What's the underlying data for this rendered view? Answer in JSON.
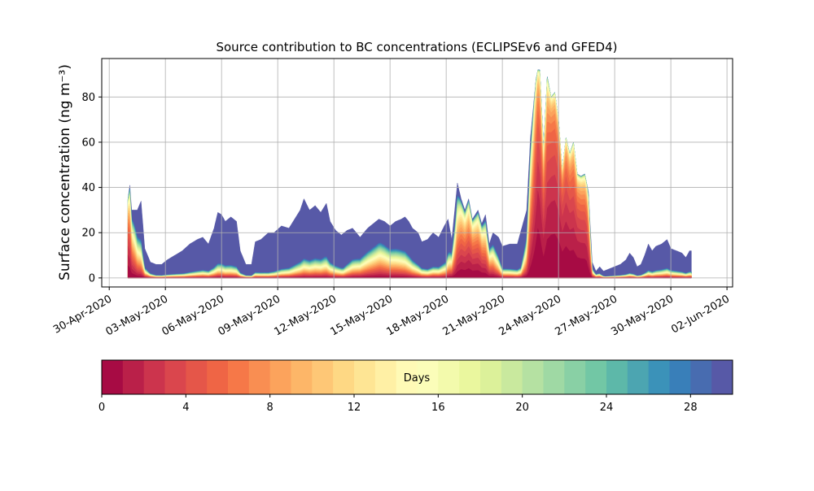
{
  "chart_data": {
    "type": "area",
    "stacked": true,
    "title": "Source contribution to BC concentrations (ECLIPSEv6 and GFED4)",
    "ylabel": "Surface concentration (ng m⁻³)",
    "xlabel": "",
    "x_start": "2020-05-01",
    "x_end": "2020-05-31",
    "xlim": [
      "2020-04-30",
      "2020-06-03"
    ],
    "ylim": [
      -4,
      97
    ],
    "xticks": [
      "30-Apr-2020",
      "03-May-2020",
      "06-May-2020",
      "09-May-2020",
      "12-May-2020",
      "15-May-2020",
      "18-May-2020",
      "21-May-2020",
      "24-May-2020",
      "27-May-2020",
      "30-May-2020",
      "02-Jun-2020"
    ],
    "yticks": [
      "0",
      "20",
      "40",
      "60",
      "80"
    ],
    "grid": true,
    "total_series": [
      [
        1.0,
        35
      ],
      [
        1.1,
        41
      ],
      [
        1.2,
        30
      ],
      [
        1.5,
        30
      ],
      [
        1.7,
        34
      ],
      [
        1.9,
        13
      ],
      [
        2.2,
        7
      ],
      [
        2.5,
        6
      ],
      [
        2.8,
        6
      ],
      [
        3.1,
        8
      ],
      [
        3.5,
        10
      ],
      [
        3.9,
        12
      ],
      [
        4.3,
        15
      ],
      [
        4.7,
        17
      ],
      [
        5.0,
        18
      ],
      [
        5.3,
        15
      ],
      [
        5.6,
        22
      ],
      [
        5.8,
        29
      ],
      [
        6.0,
        28
      ],
      [
        6.2,
        25
      ],
      [
        6.5,
        27
      ],
      [
        6.8,
        25
      ],
      [
        7.0,
        12
      ],
      [
        7.3,
        6
      ],
      [
        7.6,
        6
      ],
      [
        7.8,
        16
      ],
      [
        8.1,
        17
      ],
      [
        8.5,
        20
      ],
      [
        8.8,
        20
      ],
      [
        9.2,
        23
      ],
      [
        9.6,
        22
      ],
      [
        9.9,
        26
      ],
      [
        10.2,
        30
      ],
      [
        10.4,
        35
      ],
      [
        10.7,
        30
      ],
      [
        11.0,
        32
      ],
      [
        11.3,
        29
      ],
      [
        11.6,
        33
      ],
      [
        11.8,
        25
      ],
      [
        12.1,
        21
      ],
      [
        12.4,
        19
      ],
      [
        12.7,
        21
      ],
      [
        13.0,
        22
      ],
      [
        13.4,
        18
      ],
      [
        13.8,
        22
      ],
      [
        14.1,
        24
      ],
      [
        14.4,
        26
      ],
      [
        14.7,
        25
      ],
      [
        15.0,
        23
      ],
      [
        15.3,
        25
      ],
      [
        15.6,
        26
      ],
      [
        15.8,
        27
      ],
      [
        16.0,
        25
      ],
      [
        16.2,
        22
      ],
      [
        16.5,
        20
      ],
      [
        16.7,
        16
      ],
      [
        17.0,
        17
      ],
      [
        17.3,
        20
      ],
      [
        17.6,
        18
      ],
      [
        17.9,
        23
      ],
      [
        18.1,
        26
      ],
      [
        18.3,
        17
      ],
      [
        18.6,
        42
      ],
      [
        18.8,
        35
      ],
      [
        19.0,
        30
      ],
      [
        19.2,
        35
      ],
      [
        19.4,
        26
      ],
      [
        19.7,
        30
      ],
      [
        19.9,
        24
      ],
      [
        20.1,
        28
      ],
      [
        20.3,
        15
      ],
      [
        20.5,
        20
      ],
      [
        20.8,
        18
      ],
      [
        21.0,
        14
      ],
      [
        21.4,
        15
      ],
      [
        21.8,
        15
      ],
      [
        22.1,
        24
      ],
      [
        22.3,
        30
      ],
      [
        22.5,
        62
      ],
      [
        22.8,
        88
      ],
      [
        22.9,
        92
      ],
      [
        23.0,
        92
      ],
      [
        23.2,
        58
      ],
      [
        23.4,
        89
      ],
      [
        23.6,
        80
      ],
      [
        23.8,
        82
      ],
      [
        24.0,
        70
      ],
      [
        24.2,
        48
      ],
      [
        24.4,
        62
      ],
      [
        24.6,
        55
      ],
      [
        24.8,
        60
      ],
      [
        25.0,
        46
      ],
      [
        25.2,
        45
      ],
      [
        25.4,
        46
      ],
      [
        25.6,
        38
      ],
      [
        25.8,
        7
      ],
      [
        26.0,
        3
      ],
      [
        26.2,
        5
      ],
      [
        26.4,
        3
      ],
      [
        26.7,
        4
      ],
      [
        27.0,
        5
      ],
      [
        27.3,
        6
      ],
      [
        27.6,
        8
      ],
      [
        27.8,
        11
      ],
      [
        28.0,
        9
      ],
      [
        28.2,
        5
      ],
      [
        28.4,
        6
      ],
      [
        28.6,
        10
      ],
      [
        28.8,
        15
      ],
      [
        29.0,
        12
      ],
      [
        29.2,
        14
      ],
      [
        29.5,
        15
      ],
      [
        29.8,
        17
      ],
      [
        30.0,
        13
      ],
      [
        30.3,
        12
      ],
      [
        30.6,
        11
      ],
      [
        30.8,
        9
      ],
      [
        31.0,
        12
      ],
      [
        31.1,
        12
      ]
    ],
    "fresh_fraction_series": [
      [
        1.0,
        0.7
      ],
      [
        1.2,
        0.4
      ],
      [
        1.5,
        0.2
      ],
      [
        1.9,
        0.1
      ],
      [
        2.5,
        0.05
      ],
      [
        4.0,
        0.04
      ],
      [
        6.0,
        0.06
      ],
      [
        7.0,
        0.05
      ],
      [
        8.5,
        0.03
      ],
      [
        10.0,
        0.06
      ],
      [
        11.5,
        0.08
      ],
      [
        12.5,
        0.06
      ],
      [
        13.5,
        0.15
      ],
      [
        14.5,
        0.2
      ],
      [
        15.5,
        0.15
      ],
      [
        16.5,
        0.08
      ],
      [
        17.0,
        0.06
      ],
      [
        18.0,
        0.08
      ],
      [
        18.5,
        0.3
      ],
      [
        18.8,
        0.55
      ],
      [
        19.3,
        0.6
      ],
      [
        19.8,
        0.55
      ],
      [
        20.3,
        0.35
      ],
      [
        21.0,
        0.08
      ],
      [
        22.0,
        0.06
      ],
      [
        22.3,
        0.2
      ],
      [
        22.6,
        0.55
      ],
      [
        22.9,
        0.85
      ],
      [
        23.2,
        0.7
      ],
      [
        23.6,
        0.85
      ],
      [
        24.2,
        0.85
      ],
      [
        24.8,
        0.8
      ],
      [
        25.5,
        0.75
      ],
      [
        25.8,
        0.2
      ],
      [
        26.5,
        0.05
      ],
      [
        28.0,
        0.05
      ],
      [
        29.0,
        0.06
      ],
      [
        30.0,
        0.07
      ],
      [
        31.1,
        0.06
      ]
    ],
    "colorbar": {
      "label": "Days",
      "min": 0,
      "max": 30,
      "levels": 30,
      "ticks": [
        "0",
        "4",
        "8",
        "12",
        "16",
        "20",
        "24",
        "28"
      ],
      "colormap": [
        "#9e0142",
        "#d53e4f",
        "#f46d43",
        "#fdae61",
        "#fee08b",
        "#ffffbf",
        "#e6f598",
        "#abdda4",
        "#66c2a5",
        "#3288bd",
        "#5e4fa2"
      ]
    }
  }
}
